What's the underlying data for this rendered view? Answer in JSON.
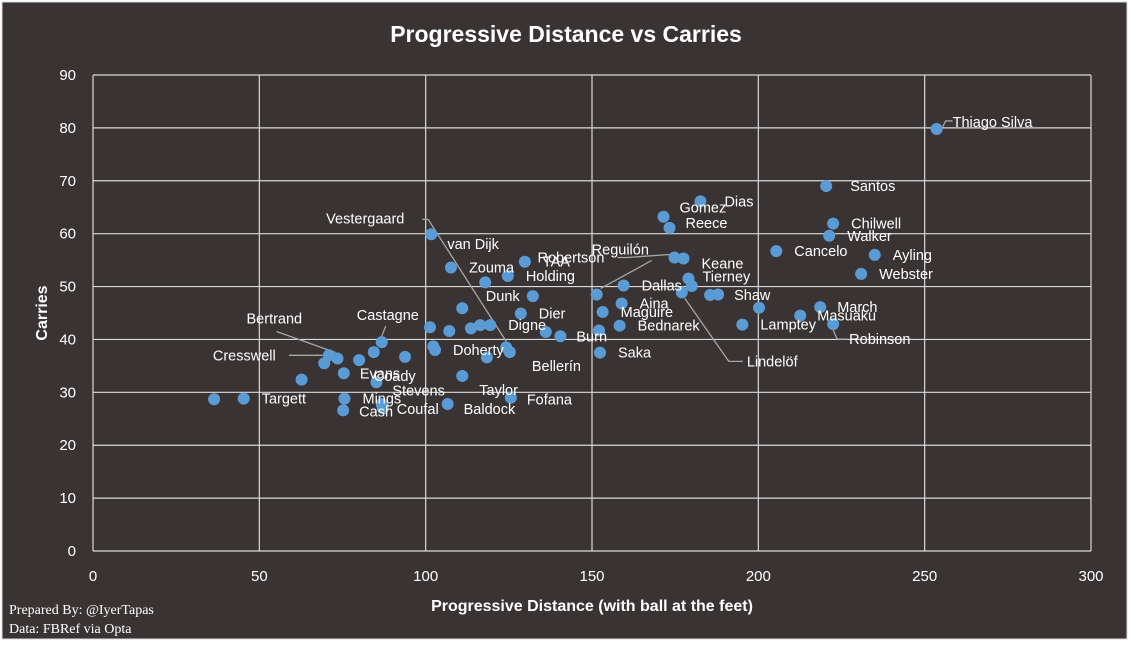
{
  "colors": {
    "background": "#393433",
    "grid": "#d9d9d9",
    "point": "#5b9bd5",
    "text": "#ffffff",
    "leader": "#a6a6a6"
  },
  "credits": {
    "prepared_by": "Prepared By: @IyerTapas",
    "data_source": "Data: FBRef via Opta"
  },
  "chart_data": {
    "type": "scatter",
    "title": "Progressive Distance vs Carries",
    "xlabel": "Progressive Distance (with ball at the feet)",
    "ylabel": "Carries",
    "xlim": [
      0,
      300
    ],
    "ylim": [
      0,
      90
    ],
    "xticks": [
      0,
      50,
      100,
      150,
      200,
      250,
      300
    ],
    "yticks": [
      0,
      10,
      20,
      30,
      40,
      50,
      60,
      70,
      80,
      90
    ],
    "grid": true,
    "points": [
      {
        "label": "Thiago Silva",
        "x": 253.6,
        "y": 79.8
      },
      {
        "label": "Santos",
        "x": 220.4,
        "y": 69.0
      },
      {
        "label": "Dias",
        "x": 182.6,
        "y": 66.1
      },
      {
        "label": "Gomez",
        "x": 171.5,
        "y": 63.2
      },
      {
        "label": "Reece",
        "x": 173.3,
        "y": 61.1
      },
      {
        "label": "Chilwell",
        "x": 222.5,
        "y": 61.9
      },
      {
        "label": "Walker",
        "x": 221.3,
        "y": 59.6
      },
      {
        "label": "van Dijk",
        "x": 101.7,
        "y": 59.9
      },
      {
        "label": "Robertson",
        "x": 174.8,
        "y": 55.5
      },
      {
        "label": "Keane",
        "x": 177.5,
        "y": 55.3
      },
      {
        "label": "Cancelo",
        "x": 205.4,
        "y": 56.7
      },
      {
        "label": "Ayling",
        "x": 235.0,
        "y": 56.0
      },
      {
        "label": "Vestergaard",
        "x": 124.2,
        "y": 38.5
      },
      {
        "label": "TAA",
        "x": 129.8,
        "y": 54.7
      },
      {
        "label": "Zouma",
        "x": 107.6,
        "y": 53.6
      },
      {
        "label": "Holding",
        "x": 124.7,
        "y": 52.0
      },
      {
        "label": "Reguilón",
        "x": 151.4,
        "y": 48.5
      },
      {
        "label": "Webster",
        "x": 230.9,
        "y": 52.4
      },
      {
        "label": "Tierney",
        "x": 179.0,
        "y": 51.5
      },
      {
        "label": "Dallas",
        "x": 159.5,
        "y": 50.2
      },
      {
        "label": "Dunk",
        "x": 132.2,
        "y": 48.2
      },
      {
        "label": "Shaw",
        "x": 185.5,
        "y": 48.4
      },
      {
        "label": "Aina",
        "x": 158.9,
        "y": 46.8
      },
      {
        "label": "March",
        "x": 218.6,
        "y": 46.1
      },
      {
        "label": "Dier",
        "x": 128.6,
        "y": 44.9
      },
      {
        "label": "Maguire",
        "x": 153.2,
        "y": 45.2
      },
      {
        "label": "Masuaku",
        "x": 212.6,
        "y": 44.5
      },
      {
        "label": "Castagne",
        "x": 86.8,
        "y": 39.5
      },
      {
        "label": "Bertrand",
        "x": 73.5,
        "y": 36.4
      },
      {
        "label": "Digne",
        "x": 119.4,
        "y": 42.7
      },
      {
        "label": "Bednarek",
        "x": 158.3,
        "y": 42.6
      },
      {
        "label": "Lamptey",
        "x": 195.2,
        "y": 42.8
      },
      {
        "label": "Robinson",
        "x": 222.5,
        "y": 42.9
      },
      {
        "label": "Burn",
        "x": 140.5,
        "y": 40.6
      },
      {
        "label": "Doherty",
        "x": 102.8,
        "y": 38.0
      },
      {
        "label": "Bellerín",
        "x": 125.3,
        "y": 37.6
      },
      {
        "label": "Saka",
        "x": 152.4,
        "y": 37.5
      },
      {
        "label": "Lindelöf",
        "x": 177.0,
        "y": 48.9
      },
      {
        "label": "Cresswell",
        "x": 70.9,
        "y": 37.0
      },
      {
        "label": "Coady",
        "x": 84.4,
        "y": 37.6
      },
      {
        "label": "Evans",
        "x": 75.4,
        "y": 33.6
      },
      {
        "label": "Taylor",
        "x": 111.0,
        "y": 33.1
      },
      {
        "label": "Stevens",
        "x": 85.2,
        "y": 31.9
      },
      {
        "label": "Targett",
        "x": 45.3,
        "y": 28.8
      },
      {
        "label": "Mings",
        "x": 75.6,
        "y": 28.8
      },
      {
        "label": "Fofana",
        "x": 125.6,
        "y": 29.0
      },
      {
        "label": "Baldock",
        "x": 106.6,
        "y": 27.8
      },
      {
        "label": "Cash",
        "x": 75.2,
        "y": 26.6
      },
      {
        "label": "Coufal",
        "x": 87.1,
        "y": 27.0
      },
      {
        "label": "",
        "x": 36.4,
        "y": 28.7
      },
      {
        "label": "",
        "x": 62.7,
        "y": 32.4
      },
      {
        "label": "",
        "x": 69.5,
        "y": 35.5
      },
      {
        "label": "",
        "x": 80.0,
        "y": 36.1
      },
      {
        "label": "",
        "x": 93.8,
        "y": 36.7
      },
      {
        "label": "",
        "x": 101.3,
        "y": 42.3
      },
      {
        "label": "",
        "x": 107.1,
        "y": 41.6
      },
      {
        "label": "",
        "x": 102.3,
        "y": 38.7
      },
      {
        "label": "",
        "x": 113.6,
        "y": 42.1
      },
      {
        "label": "",
        "x": 111.0,
        "y": 45.9
      },
      {
        "label": "",
        "x": 117.9,
        "y": 50.8
      },
      {
        "label": "",
        "x": 116.4,
        "y": 42.7
      },
      {
        "label": "",
        "x": 118.4,
        "y": 36.6
      },
      {
        "label": "",
        "x": 136.1,
        "y": 41.4
      },
      {
        "label": "",
        "x": 152.1,
        "y": 41.7
      },
      {
        "label": "",
        "x": 187.9,
        "y": 48.5
      },
      {
        "label": "",
        "x": 180.0,
        "y": 50.1
      },
      {
        "label": "",
        "x": 200.2,
        "y": 46.0
      },
      {
        "label": "",
        "x": 86.8,
        "y": 27.8
      }
    ]
  }
}
